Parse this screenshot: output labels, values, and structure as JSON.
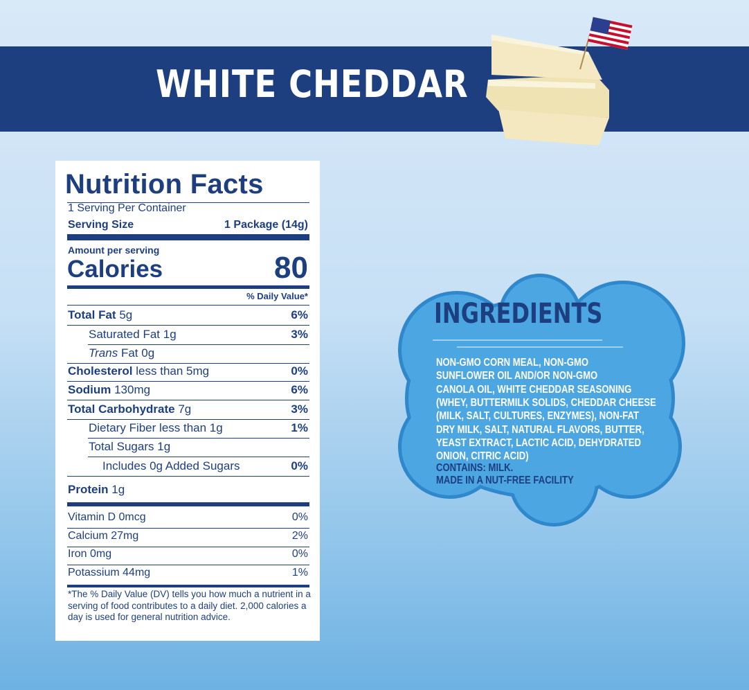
{
  "header": {
    "title": "WHITE CHEDDAR"
  },
  "nutrition_facts": {
    "title": "Nutrition Facts",
    "servings": "1 Serving Per Container",
    "serving_size_label": "Serving Size",
    "serving_size": "1 Package (14g)",
    "amount_per_serving": "Amount per serving",
    "calories_label": "Calories",
    "calories": 80,
    "daily_value_header": "% Daily Value*",
    "rows": [
      {
        "name": "Total Fat",
        "amount": "5g",
        "dv": "6%",
        "bold": true,
        "level": 0
      },
      {
        "name": "Saturated Fat",
        "amount": "1g",
        "dv": "3%",
        "bold": false,
        "level": 1
      },
      {
        "name_italic": "Trans",
        "name": "Fat",
        "amount": "0g",
        "bold": false,
        "level": 1
      },
      {
        "name": "Cholesterol",
        "amount": "less than 5mg",
        "dv": "0%",
        "bold": true,
        "level": 0
      },
      {
        "name": "Sodium",
        "amount": "130mg",
        "dv": "6%",
        "bold": true,
        "level": 0
      },
      {
        "name": "Total Carbohydrate",
        "amount": "7g",
        "dv": "3%",
        "bold": true,
        "level": 0
      },
      {
        "name": "Dietary Fiber",
        "amount": "less than 1g",
        "dv": "1%",
        "bold": false,
        "level": 1
      },
      {
        "name": "Total Sugars",
        "amount": "1g",
        "bold": false,
        "level": 1
      },
      {
        "name": "Includes",
        "amount": "0g Added Sugars",
        "dv": "0%",
        "bold": false,
        "level": 2
      },
      {
        "name": "Protein",
        "amount": "1g",
        "bold": true,
        "level": 0
      }
    ],
    "vitamins": [
      {
        "name": "Vitamin D",
        "amount": "0mcg",
        "dv": "0%"
      },
      {
        "name": "Calcium",
        "amount": "27mg",
        "dv": "2%"
      },
      {
        "name": "Iron",
        "amount": "0mg",
        "dv": "0%"
      },
      {
        "name": "Potassium",
        "amount": "44mg",
        "dv": "1%"
      }
    ],
    "footnote": "*The % Daily Value (DV) tells you how much a nutrient in a serving of food contributes to a daily diet. 2,000 calories a day is used for general nutrition advice."
  },
  "ingredients": {
    "title": "INGREDIENTS",
    "lines": [
      "NON-GMO CORN MEAL, NON-GMO",
      "SUNFLOWER OIL AND/OR NON-GMO",
      "CANOLA OIL, WHITE CHEDDAR SEASONING",
      "(WHEY, BUTTERMILK SOLIDS, CHEDDAR CHEESE",
      "(MILK, SALT, CULTURES, ENZYMES), NON-FAT",
      "DRY MILK, SALT, NATURAL FLAVORS, BUTTER,",
      "YEAST EXTRACT, LACTIC ACID, DEHYDRATED",
      "ONION, CITRIC ACID)"
    ],
    "contains": "CONTAINS: MILK.",
    "facility": "MADE IN A NUT-FREE FACILITY"
  }
}
